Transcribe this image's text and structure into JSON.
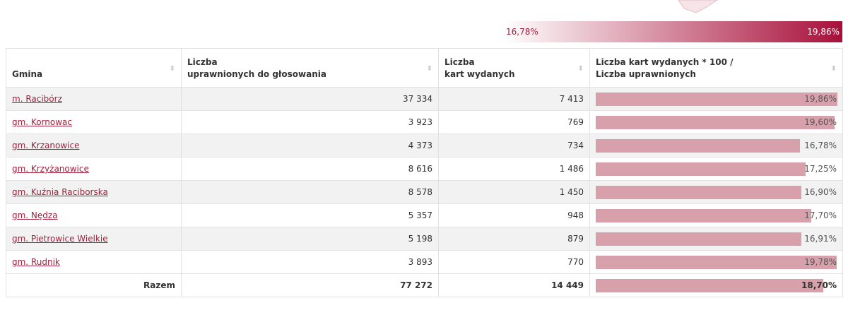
{
  "legend": {
    "min": 16.78,
    "min_label": "16,78%",
    "max": 19.86,
    "max_label": "19,86%"
  },
  "table": {
    "headers": [
      "Gmina",
      "Liczba\nuprawnionych do głosowania",
      "Liczba\nkart wydanych",
      "Liczba kart wydanych * 100 /\nLiczba uprawnionych"
    ],
    "rows": [
      {
        "name": "m. Racibórz",
        "eligible": "37 334",
        "cards": "7 413",
        "turnout": 19.86,
        "turnout_label": "19,86%"
      },
      {
        "name": "gm. Kornowac",
        "eligible": "3 923",
        "cards": "769",
        "turnout": 19.6,
        "turnout_label": "19,60%"
      },
      {
        "name": "gm. Krzanowice",
        "eligible": "4 373",
        "cards": "734",
        "turnout": 16.78,
        "turnout_label": "16,78%"
      },
      {
        "name": "gm. Krzyżanowice",
        "eligible": "8 616",
        "cards": "1 486",
        "turnout": 17.25,
        "turnout_label": "17,25%"
      },
      {
        "name": "gm. Kuźnia Raciborska",
        "eligible": "8 578",
        "cards": "1 450",
        "turnout": 16.9,
        "turnout_label": "16,90%"
      },
      {
        "name": "gm. Nędza",
        "eligible": "5 357",
        "cards": "948",
        "turnout": 17.7,
        "turnout_label": "17,70%"
      },
      {
        "name": "gm. Pietrowice Wielkie",
        "eligible": "5 198",
        "cards": "879",
        "turnout": 16.91,
        "turnout_label": "16,91%"
      },
      {
        "name": "gm. Rudnik",
        "eligible": "3 893",
        "cards": "770",
        "turnout": 19.78,
        "turnout_label": "19,78%"
      }
    ],
    "total": {
      "name": "Razem",
      "eligible": "77 272",
      "cards": "14 449",
      "turnout": 18.7,
      "turnout_label": "18,70%"
    }
  }
}
